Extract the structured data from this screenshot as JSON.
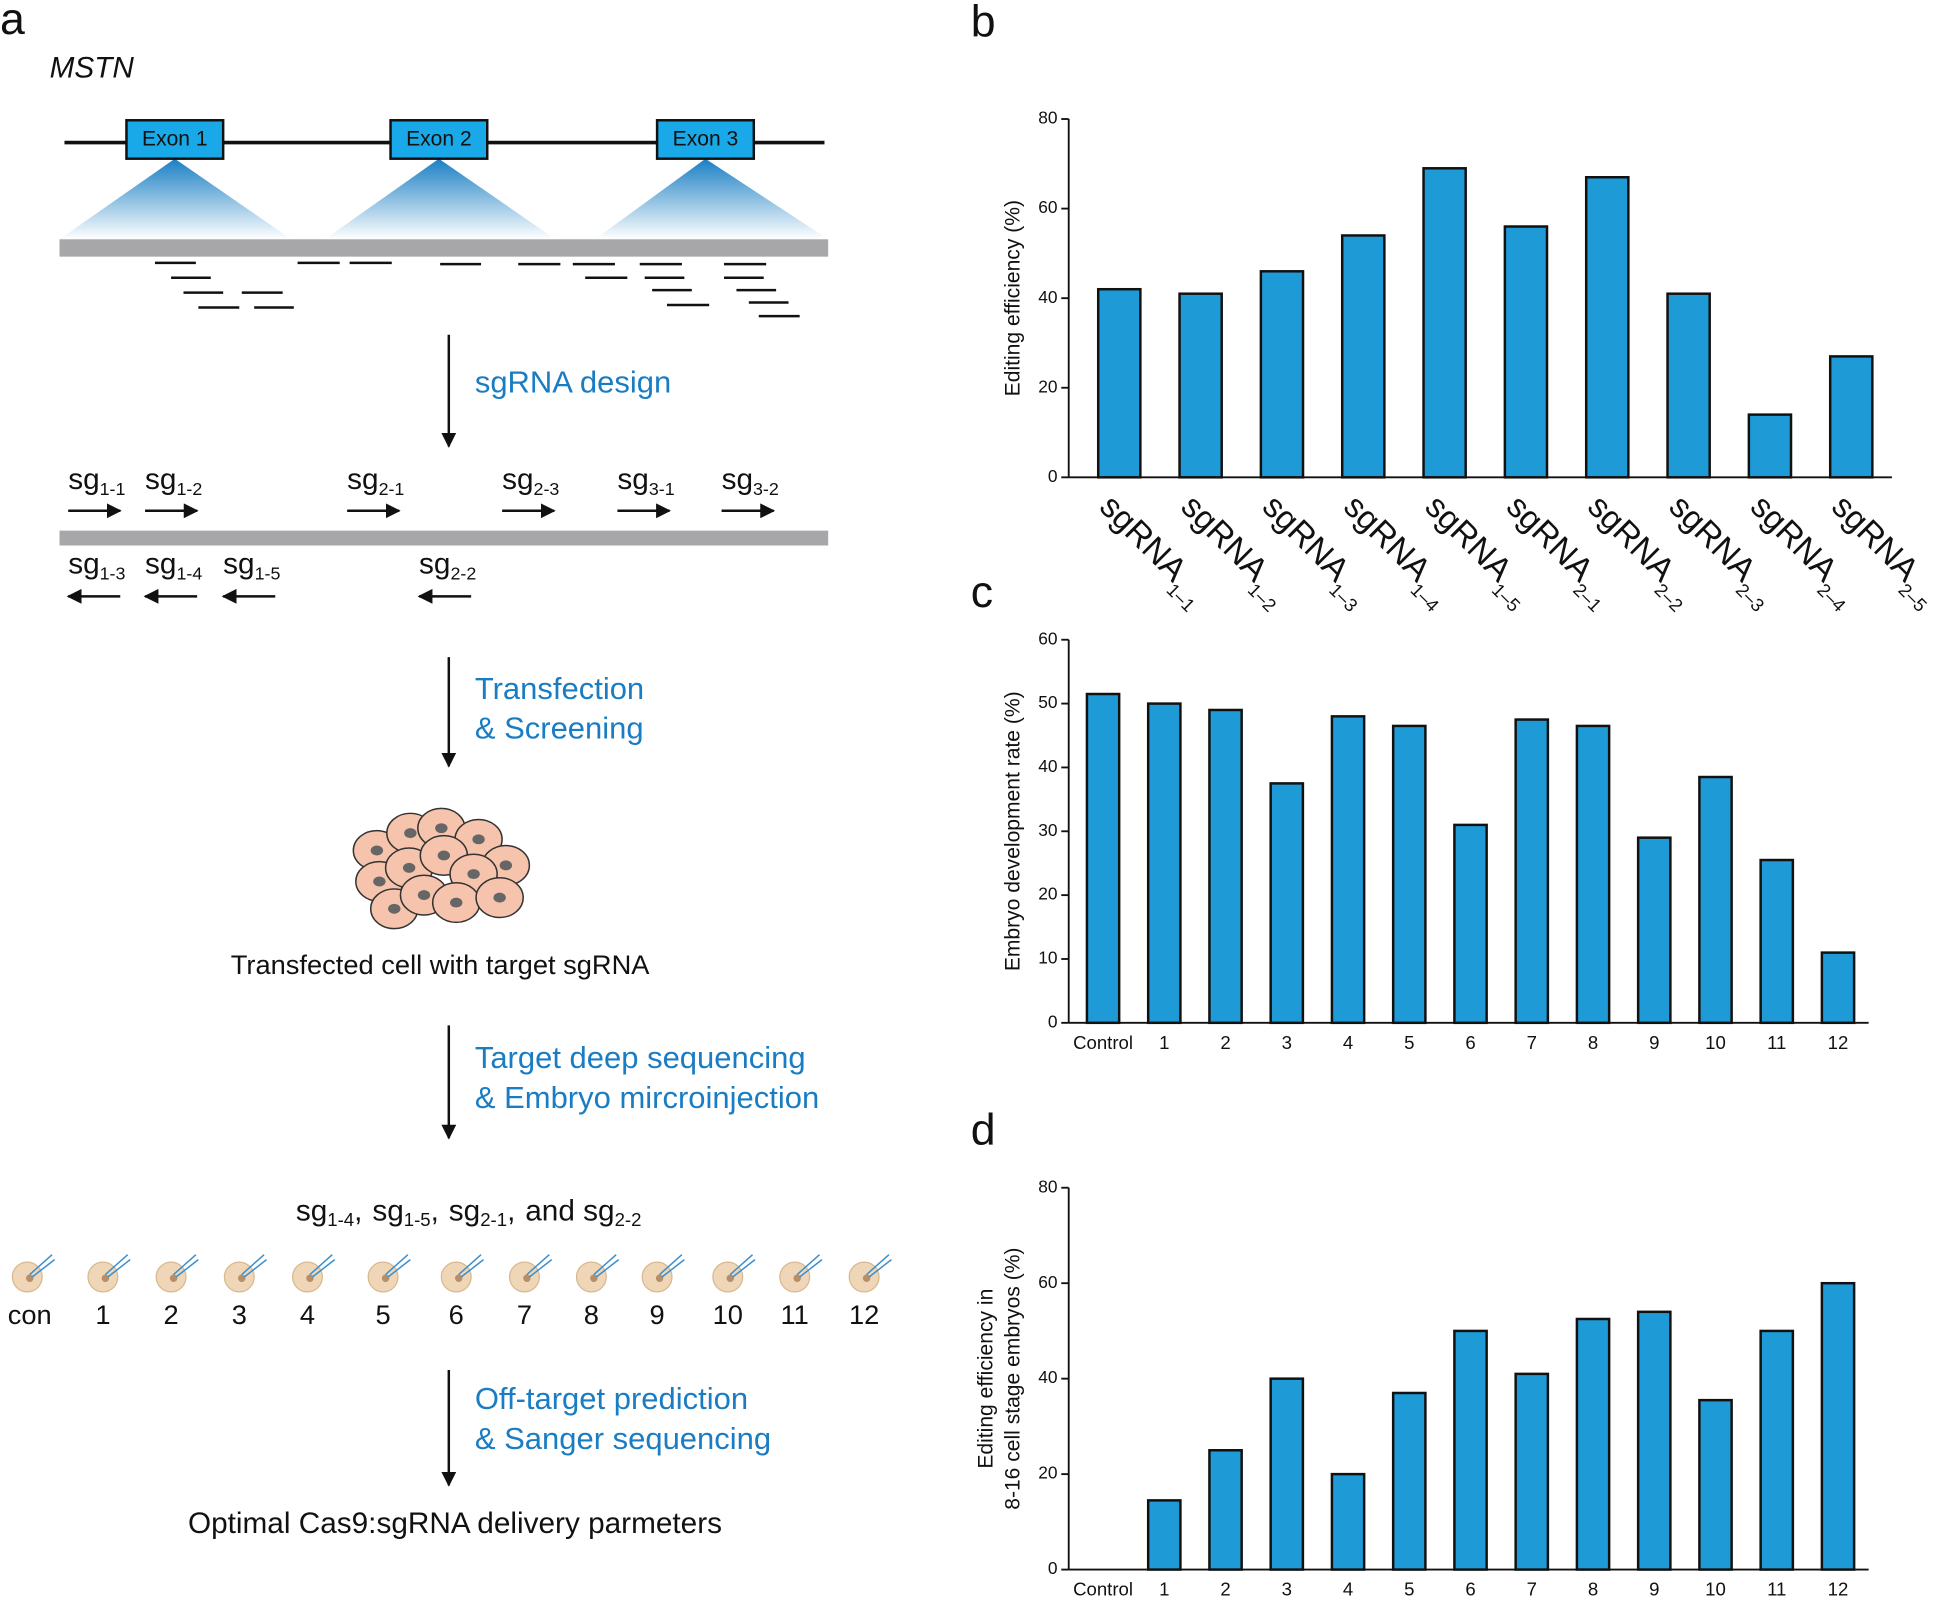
{
  "panel_a": {
    "label": "a",
    "gene": "MSTN",
    "exons": [
      "Exon 1",
      "Exon 2",
      "Exon 3"
    ],
    "sgrnas_top": [
      {
        "base": "sg",
        "sub": "1-1"
      },
      {
        "base": "sg",
        "sub": "1-2"
      },
      {
        "base": "sg",
        "sub": "2-1"
      },
      {
        "base": "sg",
        "sub": "2-3"
      },
      {
        "base": "sg",
        "sub": "3-1"
      },
      {
        "base": "sg",
        "sub": "3-2"
      }
    ],
    "sgrnas_bottom": [
      {
        "base": "sg",
        "sub": "1-3"
      },
      {
        "base": "sg",
        "sub": "1-4"
      },
      {
        "base": "sg",
        "sub": "1-5"
      },
      {
        "base": "sg",
        "sub": "2-2"
      }
    ],
    "steps": [
      [
        "sgRNA design"
      ],
      [
        "Transfection",
        "& Screening"
      ],
      [
        "Target deep sequencing",
        "& Embryo mircroinjection"
      ],
      [
        "Off-target prediction",
        "& Sanger sequencing"
      ]
    ],
    "cell_caption": "Transfected cell with target sgRNA",
    "selected": [
      {
        "base": "sg",
        "sub": "1-4",
        "after": ","
      },
      {
        "base": "sg",
        "sub": "1-5",
        "after": ","
      },
      {
        "base": "sg",
        "sub": "2-1",
        "after": ","
      },
      {
        "base": "and sg",
        "sub": "2-2"
      }
    ],
    "embryos": [
      "con",
      "1",
      "2",
      "3",
      "4",
      "5",
      "6",
      "7",
      "8",
      "9",
      "10",
      "11",
      "12"
    ],
    "result": "Optimal Cas9:sgRNA delivery parmeters"
  },
  "chart_data": [
    {
      "type": "bar",
      "label": "b",
      "y_label": [
        "Editing efficiency (%)"
      ],
      "color": "#1e9ad6",
      "categories": [
        "sgRNA1–1",
        "sgRNA1–2",
        "sgRNA1–3",
        "sgRNA1–4",
        "sgRNA1–5",
        "sgRNA2–1",
        "sgRNA2–2",
        "sgRNA2–3",
        "sgRNA2–4",
        "sgRNA2–5"
      ],
      "values": [
        42,
        41,
        46,
        54,
        69,
        56,
        67,
        41,
        14,
        27
      ],
      "ylim": [
        0,
        80
      ],
      "yticks": [
        0,
        20,
        40,
        60,
        80
      ]
    },
    {
      "type": "bar",
      "label": "c",
      "y_label": [
        "Embryo development rate  (%)"
      ],
      "color": "#1e9ad6",
      "categories": [
        "Control",
        "1",
        "2",
        "3",
        "4",
        "5",
        "6",
        "7",
        "8",
        "9",
        "10",
        "11",
        "12"
      ],
      "values": [
        51.5,
        50,
        49,
        37.5,
        48,
        46.5,
        31,
        47.5,
        46.5,
        29,
        38.5,
        25.5,
        11
      ],
      "ylim": [
        0,
        60
      ],
      "yticks": [
        0,
        10,
        20,
        30,
        40,
        50,
        60
      ]
    },
    {
      "type": "bar",
      "label": "d",
      "y_label": [
        "Editing efficiency in",
        "8-16 cell stage embryos (%)"
      ],
      "color": "#1e9ad6",
      "categories": [
        "Control",
        "1",
        "2",
        "3",
        "4",
        "5",
        "6",
        "7",
        "8",
        "9",
        "10",
        "11",
        "12"
      ],
      "values": [
        0,
        14.5,
        25,
        40,
        20,
        37,
        50,
        41,
        52.5,
        54,
        35.5,
        50,
        60
      ],
      "ylim": [
        0,
        80
      ],
      "yticks": [
        0,
        20,
        40,
        60,
        80
      ]
    }
  ]
}
